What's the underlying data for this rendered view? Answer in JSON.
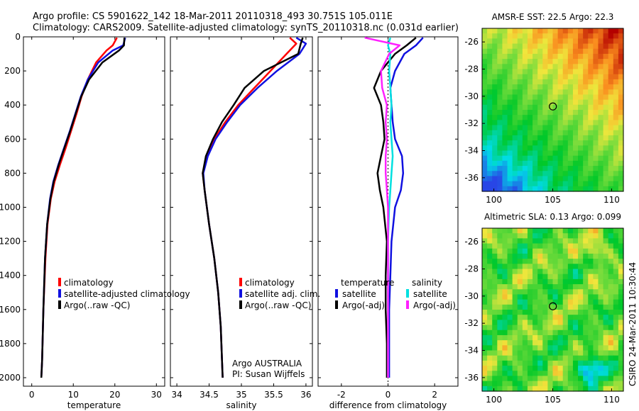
{
  "header": {
    "line1": "Argo profile: CS 5901622_142 18-Mar-2011 20110318_493 30.751S 105.011E",
    "line2": "Climatology: CARS2009. Satellite-adjusted climatology: synTS_20110318.nc (0.031d earlier)"
  },
  "side_label": "CSIRO 24-Mar-2011 10:30:44",
  "colors": {
    "climatology": "#ff0000",
    "satellite": "#1010e0",
    "argo": "#000000",
    "sal_satellite": "#00e0e0",
    "sal_argo": "#ff20ff"
  },
  "chart_data": [
    {
      "type": "line",
      "id": "temperature",
      "xlabel": "temperature",
      "xlim": [
        -2,
        32
      ],
      "xticks": [
        0,
        10,
        20,
        30
      ],
      "ylim": [
        2050,
        0
      ],
      "yticks": [
        0,
        200,
        400,
        600,
        800,
        1000,
        1200,
        1400,
        1600,
        1800,
        2000
      ],
      "legend": [
        "climatology",
        "satellite-adjusted climatology",
        "Argo(..raw -QC)"
      ],
      "series": [
        {
          "name": "climatology",
          "color": "#ff0000",
          "x": [
            20.5,
            19.5,
            18,
            15.5,
            13.5,
            12,
            10.8,
            9.5,
            8.2,
            6.8,
            5.5,
            4.6,
            3.8,
            3.3,
            2.8,
            2.5,
            2.3
          ],
          "y": [
            5,
            50,
            80,
            150,
            250,
            350,
            450,
            550,
            650,
            750,
            850,
            950,
            1100,
            1300,
            1600,
            1900,
            2000
          ]
        },
        {
          "name": "satellite",
          "color": "#1010e0",
          "x": [
            22.5,
            22,
            19.5,
            16,
            13.5,
            11.8,
            10.5,
            9.2,
            7.8,
            6.4,
            5.2,
            4.4,
            3.7,
            3.2,
            2.8,
            2.5,
            2.3
          ],
          "y": [
            5,
            50,
            80,
            150,
            250,
            350,
            450,
            550,
            650,
            750,
            850,
            950,
            1100,
            1300,
            1600,
            1900,
            2000
          ]
        },
        {
          "name": "Argo(..raw -QC)",
          "color": "#000000",
          "x": [
            22.3,
            22.2,
            21,
            17,
            13.8,
            11.9,
            10.6,
            9.3,
            7.9,
            6.5,
            5.3,
            4.5,
            3.7,
            3.2,
            2.8,
            2.5,
            2.3
          ],
          "y": [
            5,
            50,
            80,
            150,
            250,
            350,
            450,
            550,
            650,
            750,
            850,
            950,
            1100,
            1300,
            1600,
            1900,
            2000
          ]
        }
      ]
    },
    {
      "type": "line",
      "id": "salinity",
      "xlabel": "salinity",
      "xlim": [
        33.9,
        36.1
      ],
      "xticks": [
        34,
        34.5,
        35,
        35.5,
        36
      ],
      "ylim": [
        2050,
        0
      ],
      "legend": [
        "climatology",
        "satellite adj. clim.",
        "Argo(..raw -QC)"
      ],
      "annotation": [
        "Argo AUSTRALIA",
        "PI: Susan Wijffels"
      ],
      "series": [
        {
          "name": "climatology",
          "color": "#ff0000",
          "x": [
            35.75,
            35.85,
            35.7,
            35.45,
            35.2,
            34.95,
            34.75,
            34.58,
            34.46,
            34.4,
            34.43,
            34.5,
            34.58,
            34.64,
            34.68,
            34.7,
            34.71
          ],
          "y": [
            5,
            40,
            100,
            200,
            300,
            400,
            500,
            600,
            700,
            800,
            900,
            1100,
            1300,
            1500,
            1700,
            1900,
            2000
          ]
        },
        {
          "name": "satellite",
          "color": "#1010e0",
          "x": [
            35.85,
            36.0,
            35.9,
            35.55,
            35.25,
            34.98,
            34.78,
            34.6,
            34.48,
            34.41,
            34.43,
            34.5,
            34.58,
            34.64,
            34.68,
            34.7,
            34.71
          ],
          "y": [
            5,
            40,
            100,
            200,
            300,
            400,
            500,
            600,
            700,
            800,
            900,
            1100,
            1300,
            1500,
            1700,
            1900,
            2000
          ]
        },
        {
          "name": "Argo(..raw -QC)",
          "color": "#000000",
          "x": [
            35.95,
            35.92,
            35.88,
            35.35,
            35.05,
            34.88,
            34.7,
            34.56,
            34.45,
            34.4,
            34.43,
            34.5,
            34.58,
            34.64,
            34.68,
            34.7,
            34.71
          ],
          "y": [
            5,
            40,
            100,
            200,
            300,
            400,
            500,
            600,
            700,
            800,
            900,
            1100,
            1300,
            1500,
            1700,
            1900,
            2000
          ]
        }
      ]
    },
    {
      "type": "line",
      "id": "difference",
      "xlabel": "difference from climatology",
      "xlim": [
        -3,
        3
      ],
      "xticks": [
        -2,
        0,
        2
      ],
      "ylim": [
        2050,
        0
      ],
      "legend_groups": [
        {
          "title": "temperature",
          "entries": [
            "satellite",
            "Argo(-adj)"
          ]
        },
        {
          "title": "salinity",
          "entries": [
            "satellite",
            "Argo(-adj)"
          ]
        }
      ],
      "series": [
        {
          "name": "temperature satellite",
          "color": "#1010e0",
          "x": [
            1.5,
            1.2,
            0.7,
            0.3,
            0.1,
            0.15,
            0.2,
            0.3,
            0.6,
            0.65,
            0.55,
            0.3,
            0.15,
            0.1,
            0.05,
            0.05,
            0.05
          ],
          "y": [
            5,
            50,
            100,
            200,
            300,
            400,
            500,
            600,
            700,
            800,
            900,
            1000,
            1200,
            1400,
            1600,
            1800,
            2000
          ]
        },
        {
          "name": "temperature Argo(-adj)",
          "color": "#000000",
          "x": [
            1.2,
            0.8,
            0.3,
            -0.3,
            -0.6,
            -0.3,
            -0.2,
            -0.15,
            -0.3,
            -0.45,
            -0.35,
            -0.2,
            -0.05,
            -0.1,
            -0.1,
            -0.05,
            -0.05
          ],
          "y": [
            5,
            50,
            100,
            200,
            300,
            400,
            500,
            600,
            700,
            800,
            900,
            1000,
            1200,
            1400,
            1600,
            1800,
            2000
          ]
        },
        {
          "name": "salinity satellite",
          "color": "#00e0e0",
          "x": [
            0.1,
            0.0,
            0.1,
            0.05,
            0.1,
            0.15,
            0.1,
            0.15,
            0.2,
            0.15,
            0.1,
            0.05,
            0.0,
            0.0,
            0.0,
            0.0,
            0.0
          ],
          "y": [
            5,
            50,
            100,
            200,
            300,
            400,
            500,
            600,
            700,
            800,
            900,
            1000,
            1200,
            1400,
            1600,
            1800,
            2000
          ]
        },
        {
          "name": "salinity Argo(-adj)",
          "color": "#ff20ff",
          "x": [
            -1.0,
            0.5,
            0.05,
            -0.3,
            -0.25,
            -0.05,
            -0.1,
            -0.05,
            -0.1,
            -0.1,
            -0.05,
            0.0,
            0.0,
            0.0,
            0.0,
            0.0,
            0.0
          ],
          "y": [
            5,
            50,
            100,
            200,
            300,
            400,
            500,
            600,
            700,
            800,
            900,
            1000,
            1200,
            1400,
            1600,
            1800,
            2000
          ]
        }
      ]
    },
    {
      "type": "heatmap",
      "id": "sst-map",
      "title": "AMSR-E SST: 22.5 Argo: 22.3",
      "xlim": [
        99,
        111
      ],
      "ylim": [
        -37,
        -25
      ],
      "xticks": [
        100,
        105,
        110
      ],
      "yticks": [
        -26,
        -28,
        -30,
        -32,
        -34,
        -36
      ],
      "marker": {
        "lon": 105.011,
        "lat": -30.751
      }
    },
    {
      "type": "heatmap",
      "id": "sla-map",
      "title": "Altimetric SLA: 0.13 Argo: 0.099",
      "xlim": [
        99,
        111
      ],
      "ylim": [
        -37,
        -25
      ],
      "xticks": [
        100,
        105,
        110
      ],
      "yticks": [
        -26,
        -28,
        -30,
        -32,
        -34,
        -36
      ],
      "marker": {
        "lon": 105.011,
        "lat": -30.751
      }
    }
  ]
}
